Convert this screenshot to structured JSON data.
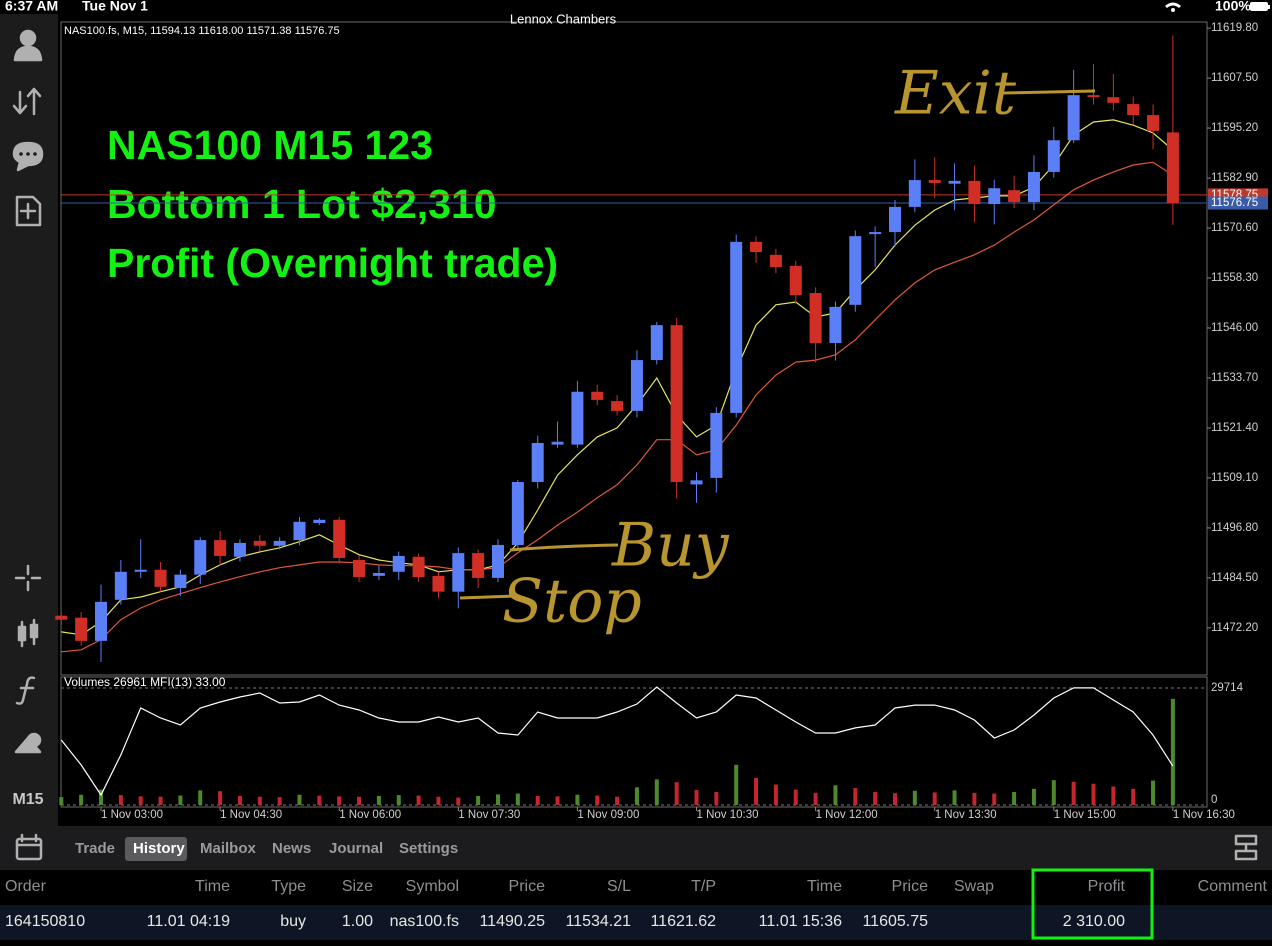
{
  "status_bar": {
    "time": "6:37 AM",
    "date": "Tue Nov 1",
    "battery": "100%"
  },
  "chart_title": "Lennox Chambers",
  "sidebar": {
    "timeframe": "M15"
  },
  "chart_data": [
    {
      "type": "candlestick",
      "info": "NAS100.fs, M15, 11594.13 11618.00 11571.38 11576.75",
      "annotations": [
        "NAS100 M15 123",
        "Bottom 1 Lot $2,310",
        "Profit (Overnight trade)"
      ],
      "handwriting": [
        "Exit",
        "Buy",
        "Stop"
      ],
      "up_color": "#5b7ff7",
      "down_color": "#d12f25",
      "categories": [
        null,
        null,
        "1 Nov 03:00",
        null,
        null,
        null,
        null,
        null,
        "1 Nov 04:30",
        null,
        null,
        null,
        null,
        null,
        "1 Nov 06:00",
        null,
        null,
        null,
        null,
        null,
        "1 Nov 07:30",
        null,
        null,
        null,
        null,
        null,
        "1 Nov 09:00",
        null,
        null,
        null,
        null,
        null,
        "1 Nov 10:30",
        null,
        null,
        null,
        null,
        null,
        "1 Nov 12:00",
        null,
        null,
        null,
        null,
        null,
        "1 Nov 13:30",
        null,
        null,
        null,
        null,
        null,
        "1 Nov 15:00",
        null,
        null,
        null,
        null,
        null,
        "1 Nov 16:30"
      ],
      "open": [
        11475.2,
        11474.7,
        11469.0,
        11479.1,
        11486.0,
        11486.5,
        11482.0,
        11485.3,
        11493.8,
        11489.7,
        11493.6,
        11492.4,
        11493.8,
        11498.0,
        11498.8,
        11488.9,
        11485.0,
        11486.0,
        11489.7,
        11485.0,
        11481.1,
        11490.6,
        11484.5,
        11492.6,
        11508.1,
        11517.3,
        11517.3,
        11530.3,
        11528.0,
        11525.6,
        11538.1,
        11546.7,
        11507.5,
        11509.1,
        11525.1,
        11567.2,
        11564.0,
        11561.3,
        11554.6,
        11542.3,
        11551.7,
        11569.1,
        11569.6,
        11575.8,
        11582.4,
        11581.5,
        11582.2,
        11576.5,
        11579.9,
        11577.0,
        11584.4,
        11592.2,
        11603.3,
        11602.8,
        11601.1,
        11598.4,
        11594.13
      ],
      "high": [
        11476.1,
        11476.1,
        11482.8,
        11488.9,
        11494.0,
        11488.4,
        11486.5,
        11494.5,
        11496.0,
        11494.0,
        11495.0,
        11494.5,
        11499.5,
        11499.2,
        11499.5,
        11490.0,
        11487.5,
        11491.0,
        11490.5,
        11486.0,
        11492.0,
        11491.5,
        11494.0,
        11508.6,
        11519.5,
        11523.0,
        11533.0,
        11532.0,
        11529.5,
        11540.5,
        11547.5,
        11548.5,
        11510.5,
        11526.5,
        11569.0,
        11568.5,
        11565.5,
        11562.5,
        11556.0,
        11552.5,
        11570.0,
        11571.0,
        11577.5,
        11587.5,
        11588.0,
        11586.5,
        11586.0,
        11582.5,
        11583.5,
        11588.5,
        11595.5,
        11609.5,
        11611.0,
        11608.5,
        11603.0,
        11601.0,
        11618.0
      ],
      "low": [
        11472.9,
        11467.8,
        11463.8,
        11477.9,
        11484.5,
        11481.1,
        11480.0,
        11483.0,
        11487.5,
        11488.5,
        11491.0,
        11491.5,
        11492.5,
        11497.5,
        11488.0,
        11483.5,
        11484.0,
        11484.0,
        11483.5,
        11479.5,
        11477.0,
        11482.0,
        11483.5,
        11491.5,
        11506.5,
        11516.5,
        11516.5,
        11527.0,
        11524.5,
        11524.0,
        11537.0,
        11504.0,
        11503.0,
        11505.5,
        11524.0,
        11562.0,
        11559.5,
        11552.0,
        11537.5,
        11538.0,
        11550.0,
        11561.0,
        11566.0,
        11574.5,
        11578.0,
        11575.0,
        11572.0,
        11571.5,
        11575.5,
        11575.0,
        11583.0,
        11591.5,
        11601.0,
        11599.5,
        11596.0,
        11590.0,
        11571.38
      ],
      "close": [
        11474.2,
        11469.0,
        11478.6,
        11486.0,
        11486.5,
        11482.3,
        11485.3,
        11493.8,
        11489.9,
        11493.1,
        11492.4,
        11493.6,
        11498.3,
        11498.8,
        11489.4,
        11484.7,
        11485.7,
        11489.9,
        11484.7,
        11481.1,
        11490.6,
        11484.5,
        11492.6,
        11508.1,
        11517.7,
        11518.0,
        11530.3,
        11528.3,
        11525.6,
        11538.1,
        11546.7,
        11508.1,
        11508.5,
        11525.1,
        11567.2,
        11564.7,
        11561.0,
        11554.1,
        11542.3,
        11551.2,
        11568.6,
        11569.6,
        11575.8,
        11582.4,
        11581.7,
        11582.2,
        11576.5,
        11580.4,
        11577.0,
        11584.4,
        11592.2,
        11603.3,
        11602.8,
        11601.4,
        11598.4,
        11594.5,
        11576.75
      ],
      "series": [
        {
          "color": "#e6e65a",
          "values": [
            11471.2,
            11470.5,
            11473.7,
            11479.1,
            11479.8,
            11481.1,
            11482.3,
            11485.2,
            11487.7,
            11489.7,
            11490.9,
            11491.9,
            11493.4,
            11495.1,
            11492.6,
            11490.2,
            11488.9,
            11488.2,
            11487.7,
            11486.0,
            11486.5,
            11486.5,
            11487.7,
            11493.1,
            11501.2,
            11509.8,
            11514.8,
            11519.2,
            11521.4,
            11527.1,
            11533.7,
            11524.6,
            11519.2,
            11522.1,
            11535.7,
            11546.7,
            11551.7,
            11552.4,
            11548.7,
            11549.7,
            11555.4,
            11560.3,
            11566.4,
            11571.3,
            11575.0,
            11577.5,
            11578.0,
            11578.5,
            11578.5,
            11580.7,
            11586.1,
            11593.5,
            11596.7,
            11597.2,
            11595.9,
            11594.0,
            11589.8
          ]
        },
        {
          "color": "#e0573c",
          "values": [
            11466.3,
            11466.8,
            11469.3,
            11474.2,
            11477.1,
            11479.1,
            11480.6,
            11482.1,
            11483.5,
            11484.8,
            11486.0,
            11487.0,
            11487.7,
            11488.4,
            11488.4,
            11488.2,
            11487.7,
            11487.5,
            11487.5,
            11487.2,
            11486.5,
            11486.5,
            11487.0,
            11490.7,
            11493.9,
            11497.5,
            11500.7,
            11504.2,
            11507.4,
            11512.3,
            11518.5,
            11518.5,
            11514.8,
            11516.0,
            11522.1,
            11529.5,
            11534.4,
            11537.6,
            11538.1,
            11539.4,
            11543.1,
            11548.0,
            11552.9,
            11557.1,
            11560.3,
            11562.2,
            11564.0,
            11566.4,
            11569.6,
            11572.6,
            11576.3,
            11580.0,
            11582.4,
            11584.4,
            11586.1,
            11586.8,
            11583.6
          ]
        }
      ],
      "price_lines": [
        {
          "value": 11578.75,
          "color": "#c0392b"
        },
        {
          "value": 11576.75,
          "color": "#3a5ca8"
        }
      ],
      "ylim": [
        11460.6,
        11621.3
      ],
      "yticks": [
        {
          "value": 11619.8,
          "label": "11619.80"
        },
        {
          "value": 11607.5,
          "label": "11607.50"
        },
        {
          "value": 11595.2,
          "label": "11595.20"
        },
        {
          "value": 11582.9,
          "label": "11582.90"
        },
        {
          "value": 11570.6,
          "label": "11570.60"
        },
        {
          "value": 11558.3,
          "label": "11558.30"
        },
        {
          "value": 11546.0,
          "label": "11546.00"
        },
        {
          "value": 11533.7,
          "label": "11533.70"
        },
        {
          "value": 11521.4,
          "label": "11521.40"
        },
        {
          "value": 11509.1,
          "label": "11509.10"
        },
        {
          "value": 11496.8,
          "label": "11496.80"
        },
        {
          "value": 11484.5,
          "label": "11484.50"
        },
        {
          "value": 11472.2,
          "label": "11472.20"
        }
      ]
    },
    {
      "type": "volume",
      "title": "Volumes 26961 MFI(13) 33.00",
      "up_color": "#4e8a2b",
      "down_color": "#c4262e",
      "values": [
        2000,
        2600,
        3900,
        2500,
        2200,
        2100,
        2400,
        3700,
        3500,
        2300,
        2100,
        2000,
        2600,
        2400,
        2200,
        2100,
        2300,
        2500,
        2400,
        2100,
        1900,
        2300,
        2700,
        2900,
        2300,
        2200,
        2600,
        2400,
        2100,
        4500,
        6500,
        5800,
        3800,
        3300,
        10200,
        6900,
        5200,
        3900,
        3100,
        5000,
        4300,
        3300,
        3000,
        3600,
        3200,
        3700,
        3100,
        2900,
        3300,
        4100,
        6300,
        5900,
        5400,
        4700,
        4100,
        6200,
        26961
      ],
      "series": [
        {
          "color": "#ffffff",
          "axis": "y2",
          "values": [
            55.1,
            33.9,
            8.5,
            42.4,
            82.2,
            73.7,
            67.8,
            82.2,
            87.3,
            91.5,
            94.9,
            86.4,
            87.3,
            93.2,
            84.7,
            80.5,
            73.7,
            70.3,
            70.3,
            74.6,
            70.3,
            73.7,
            61.0,
            59.3,
            78.8,
            73.7,
            73.7,
            73.7,
            78.8,
            85.6,
            100,
            86.4,
            73.7,
            78.8,
            93.2,
            90.7,
            80.5,
            70.3,
            61.0,
            61.0,
            65.3,
            67.8,
            82.2,
            84.7,
            84.7,
            80.5,
            72.0,
            56.8,
            63.6,
            76.3,
            90.7,
            99.2,
            99.2,
            89.0,
            78.8,
            59.3,
            33.0
          ]
        }
      ],
      "ylim": [
        0,
        29714
      ],
      "yticks": [
        0,
        29714
      ],
      "y2lim": [
        0,
        100
      ]
    }
  ],
  "trade_panel": {
    "tabs": [
      "Trade",
      "History",
      "Mailbox",
      "News",
      "Journal",
      "Settings"
    ],
    "active_tab": 1,
    "table": {
      "columns": [
        "Order",
        "Time",
        "Type",
        "Size",
        "Symbol",
        "Price",
        "S/L",
        "T/P",
        "Time",
        "Price",
        "Swap",
        "Profit",
        "Comment"
      ],
      "rows": [
        [
          "164150810",
          "11.01 04:19",
          "buy",
          "1.00",
          "nas100.fs",
          "11490.25",
          "11534.21",
          "11621.62",
          "11.01 15:36",
          "11605.75",
          null,
          "2 310.00",
          null
        ]
      ]
    }
  }
}
